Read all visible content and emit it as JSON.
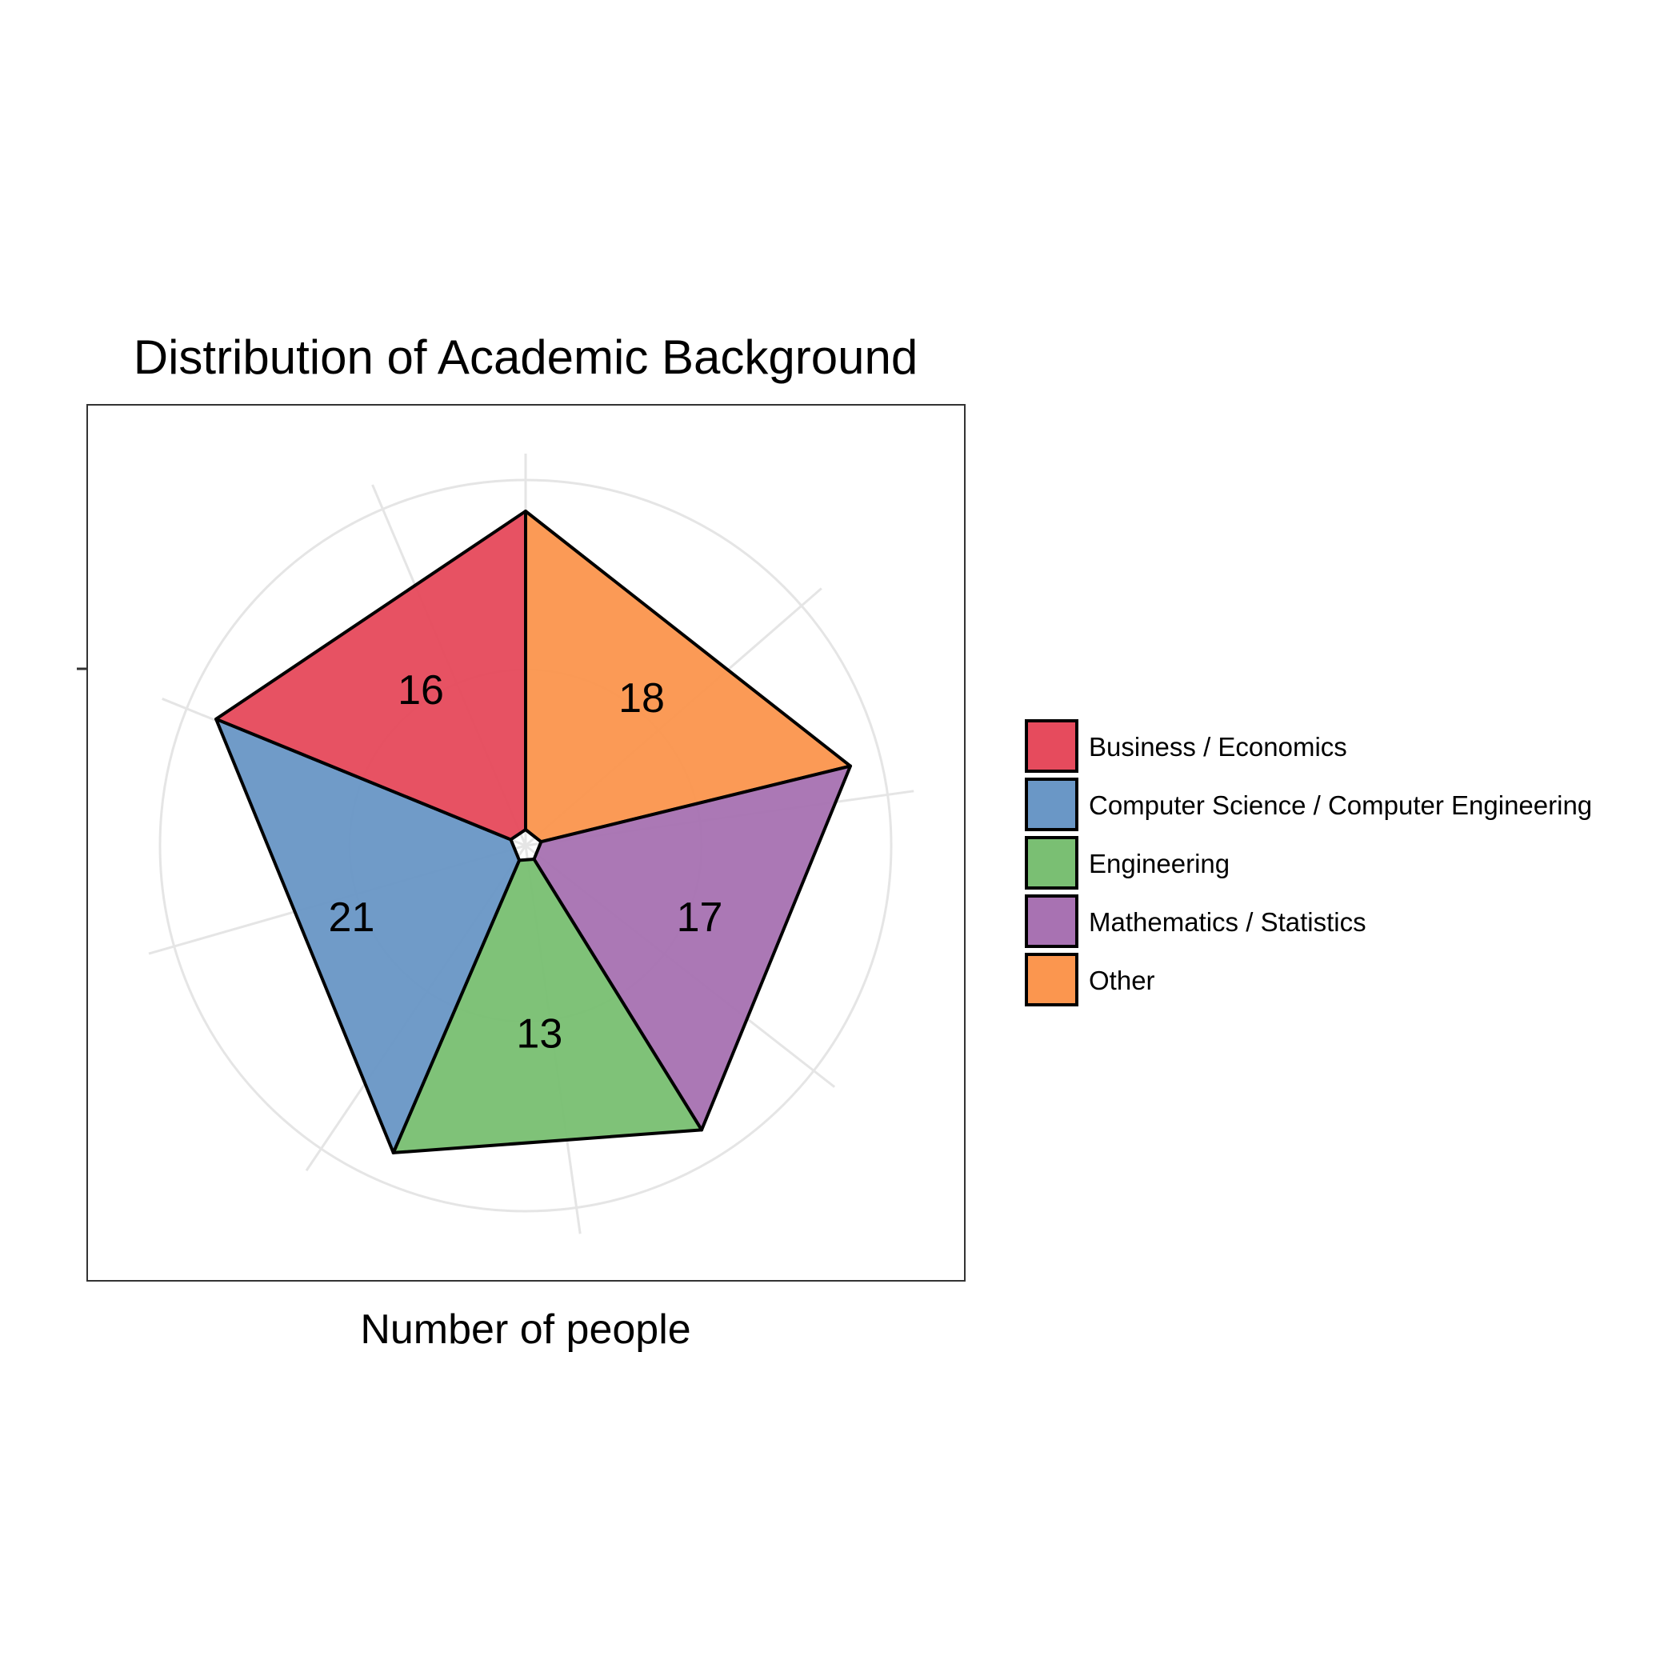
{
  "chart_data": {
    "type": "pie",
    "title": "Distribution of Academic Background",
    "xlabel": "Number of people",
    "ylabel": "",
    "categories": [
      "Business / Economics",
      "Computer Science / Computer Engineering",
      "Engineering",
      "Mathematics / Statistics",
      "Other"
    ],
    "values": [
      16,
      21,
      13,
      17,
      18
    ],
    "colors": [
      "#E64B5D",
      "#6A97C6",
      "#7ABF73",
      "#A872B2",
      "#FB964F"
    ],
    "slice_order_clockwise_from_top": [
      "Other",
      "Mathematics / Statistics",
      "Engineering",
      "Computer Science / Computer Engineering",
      "Business / Economics"
    ],
    "grid": true,
    "legend": "right"
  }
}
